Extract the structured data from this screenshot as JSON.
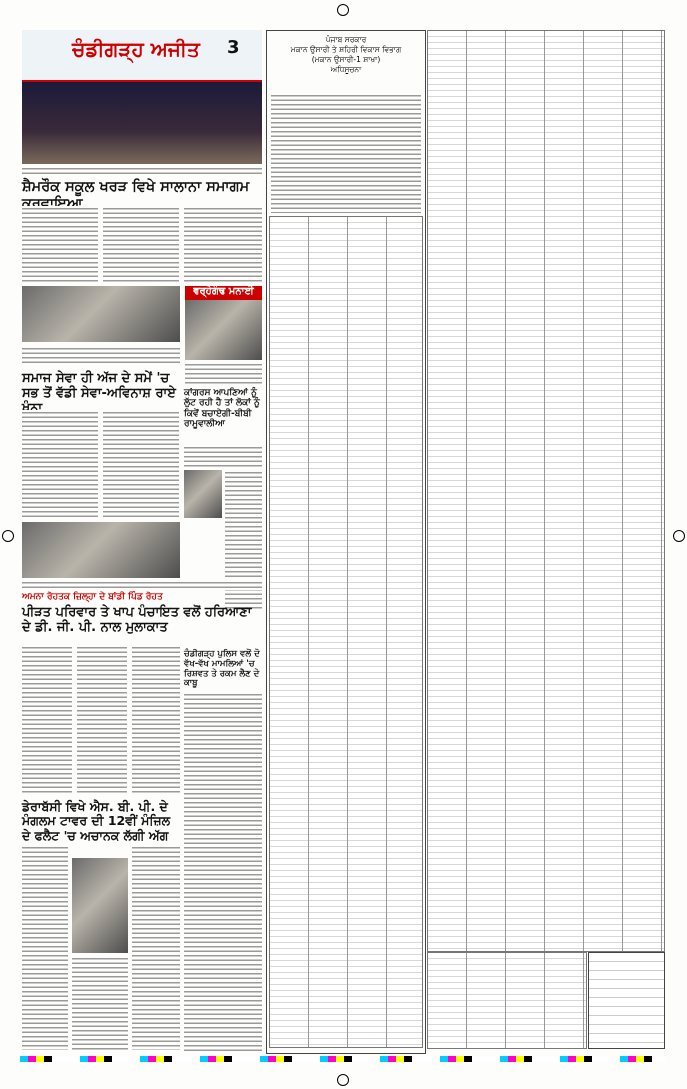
{
  "masthead": {
    "title": "ਚੰਡੀਗੜ੍ਹ ਅਜੀਤ",
    "page": "3"
  },
  "stories": [
    {
      "headline": "ਸ਼ੈਮਰੌਕ ਸਕੂਲ ਖਰੜ ਵਿਖੇ ਸਾਲਾਨਾ ਸਮਾਗਮ ਕਰਵਾਇਆ"
    },
    {
      "headline": "ਸਮਾਜ ਸੇਵਾ ਹੀ ਅੱਜ ਦੇ ਸਮੇਂ 'ਚ ਸਭ ਤੋਂ ਵੱਡੀ ਸੇਵਾ-ਅਵਿਨਾਸ਼ ਰਾਏ ਖੰਨਾ"
    },
    {
      "headline": "ਕਾਂਗਰਸ ਆਪਣਿਆਂ ਨੂੰ ਲੁੱਟ ਰਹੀ ਹੈ ਤਾਂ ਲੋਕਾਂ ਨੂੰ ਕਿਵੇਂ ਬਚਾਏਗੀ-ਬੀਬੀ ਰਾਮੂਵਾਲੀਆ"
    },
    {
      "kicker": "ਅਮਨਾ ਰੋਹਤਕ ਜ਼ਿਲ੍ਹਾ ਦੇ ਬਾਂਡੀ ਪਿੰਡ ਰੋਹਤ",
      "headline": "ਪੀੜਤ ਪਰਿਵਾਰ ਤੇ ਖਾਪ ਪੰਚਾਇਤ ਵਲੋਂ ਹਰਿਆਣਾ ਦੇ ਡੀ. ਜੀ. ਪੀ. ਨਾਲ ਮੁਲਾਕਾਤ"
    },
    {
      "headline": "ਚੰਡੀਗੜ੍ਹ ਪੁਲਿਸ ਵਲੋਂ ਦੋ ਵੱਖ-ਵੱਖ ਮਾਮਲਿਆਂ 'ਚ ਰਿਸ਼ਵਤ ਤੇ ਰਕਮ ਲੈਣ ਦੇ ਕਾਬੂ"
    },
    {
      "headline": "ਡੇਰਾਬੱਸੀ ਵਿਖੇ ਐਸ. ਬੀ. ਪੀ. ਦੇ ਮੰਗਲਮ ਟਾਵਰ ਦੀ 12ਵੀਂ ਮੰਜ਼ਿਲ ਦੇ ਫਲੈਟ 'ਚ ਅਚਾਨਕ ਲੱਗੀ ਅੱਗ"
    }
  ],
  "banner": "ਵਰ੍ਹੇਗੰਢ ਮਨਾਈ",
  "notice": {
    "lines": [
      "ਪੰਜਾਬ ਸਰਕਾਰ",
      "ਮਕਾਨ ਉਸਾਰੀ ਤੇ ਸ਼ਹਿਰੀ ਵਿਕਾਸ ਵਿਭਾਗ",
      "(ਮਕਾਨ ਉਸਾਰੀ-1 ਸ਼ਾਖਾ)",
      "ਅਧਿਸੂਚਨਾ"
    ]
  }
}
